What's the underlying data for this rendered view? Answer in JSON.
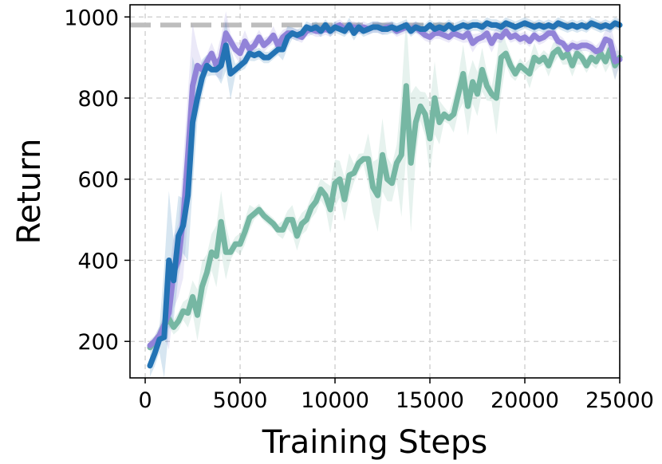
{
  "chart_data": {
    "type": "line",
    "title": "",
    "xlabel": "Training Steps",
    "ylabel": "Return",
    "xlim": [
      -800,
      25000
    ],
    "ylim": [
      110,
      1030
    ],
    "xticks": [
      0,
      5000,
      10000,
      15000,
      20000,
      25000
    ],
    "yticks": [
      200,
      400,
      600,
      800,
      1000
    ],
    "xtick_labels": [
      "0",
      "5000",
      "10000",
      "15000",
      "20000",
      "25000"
    ],
    "ytick_labels": [
      "200",
      "400",
      "600",
      "800",
      "1000"
    ],
    "grid": true,
    "legend": "none",
    "reference_line": {
      "y": 980,
      "color": "#bdbdbd",
      "style": "dashed"
    },
    "series": [
      {
        "color": "#76b7a3",
        "x": [
          250,
          500,
          750,
          1000,
          1250,
          1500,
          1750,
          2000,
          2250,
          2500,
          2750,
          3000,
          3250,
          3500,
          3750,
          4000,
          4250,
          4500,
          4750,
          5000,
          5250,
          5500,
          5750,
          6000,
          6250,
          6500,
          6750,
          7000,
          7250,
          7500,
          7750,
          8000,
          8250,
          8500,
          8750,
          9000,
          9250,
          9500,
          9750,
          10000,
          10250,
          10500,
          10750,
          11000,
          11250,
          11500,
          11750,
          12000,
          12250,
          12500,
          12750,
          13000,
          13250,
          13500,
          13750,
          14000,
          14250,
          14500,
          14750,
          15000,
          15250,
          15500,
          15750,
          16000,
          16250,
          16500,
          16750,
          17000,
          17250,
          17500,
          17750,
          18000,
          18250,
          18500,
          18750,
          19000,
          19250,
          19500,
          19750,
          20000,
          20250,
          20500,
          20750,
          21000,
          21250,
          21500,
          21750,
          22000,
          22250,
          22500,
          22750,
          23000,
          23250,
          23500,
          23750,
          24000,
          24250,
          24500,
          24750,
          25000
        ],
        "y": [
          185,
          200,
          215,
          240,
          255,
          235,
          250,
          275,
          270,
          310,
          265,
          335,
          370,
          420,
          410,
          495,
          420,
          420,
          440,
          440,
          470,
          505,
          515,
          525,
          510,
          500,
          490,
          475,
          475,
          500,
          500,
          460,
          490,
          500,
          530,
          545,
          575,
          560,
          525,
          590,
          600,
          550,
          610,
          615,
          640,
          650,
          650,
          580,
          560,
          660,
          600,
          590,
          640,
          660,
          830,
          640,
          740,
          780,
          760,
          700,
          800,
          740,
          760,
          750,
          760,
          810,
          860,
          780,
          840,
          810,
          870,
          830,
          810,
          800,
          900,
          910,
          880,
          860,
          880,
          870,
          860,
          900,
          890,
          900,
          880,
          910,
          920,
          900,
          910,
          880,
          910,
          900,
          880,
          900,
          890,
          910,
          890,
          920,
          880,
          900
        ]
      },
      {
        "color": "#9283d8",
        "x": [
          250,
          500,
          750,
          1000,
          1250,
          1500,
          1750,
          2000,
          2250,
          2500,
          2750,
          3000,
          3250,
          3500,
          3750,
          4000,
          4250,
          4500,
          4750,
          5000,
          5250,
          5500,
          5750,
          6000,
          6250,
          6500,
          6750,
          7000,
          7250,
          7500,
          7750,
          8000,
          8250,
          8500,
          8750,
          9000,
          9250,
          9500,
          9750,
          10000,
          10250,
          10500,
          10750,
          11000,
          11250,
          11500,
          11750,
          12000,
          12250,
          12500,
          12750,
          13000,
          13250,
          13500,
          13750,
          14000,
          14250,
          14500,
          14750,
          15000,
          15250,
          15500,
          15750,
          16000,
          16250,
          16500,
          16750,
          17000,
          17250,
          17500,
          17750,
          18000,
          18250,
          18500,
          18750,
          19000,
          19250,
          19500,
          19750,
          20000,
          20250,
          20500,
          20750,
          21000,
          21250,
          21500,
          21750,
          22000,
          22250,
          22500,
          22750,
          23000,
          23250,
          23500,
          23750,
          24000,
          24250,
          24500,
          24750,
          25000
        ],
        "y": [
          190,
          200,
          215,
          240,
          270,
          370,
          400,
          500,
          660,
          830,
          880,
          870,
          890,
          910,
          880,
          900,
          960,
          940,
          920,
          910,
          940,
          920,
          930,
          950,
          930,
          940,
          955,
          930,
          950,
          960,
          960,
          955,
          950,
          965,
          970,
          965,
          965,
          970,
          965,
          975,
          980,
          970,
          975,
          975,
          970,
          975,
          970,
          975,
          975,
          970,
          975,
          975,
          965,
          970,
          975,
          970,
          975,
          965,
          955,
          950,
          960,
          960,
          955,
          950,
          960,
          955,
          950,
          960,
          935,
          945,
          950,
          960,
          935,
          955,
          950,
          965,
          950,
          955,
          945,
          950,
          940,
          955,
          945,
          950,
          960,
          960,
          940,
          935,
          920,
          930,
          925,
          930,
          930,
          925,
          915,
          920,
          945,
          940,
          890,
          895
        ]
      },
      {
        "color": "#2373b4",
        "x": [
          250,
          500,
          750,
          1000,
          1250,
          1500,
          1750,
          2000,
          2250,
          2500,
          2750,
          3000,
          3250,
          3500,
          3750,
          4000,
          4250,
          4500,
          4750,
          5000,
          5250,
          5500,
          5750,
          6000,
          6250,
          6500,
          6750,
          7000,
          7250,
          7500,
          7750,
          8000,
          8250,
          8500,
          8750,
          9000,
          9250,
          9500,
          9750,
          10000,
          10250,
          10500,
          10750,
          11000,
          11250,
          11500,
          11750,
          12000,
          12250,
          12500,
          12750,
          13000,
          13250,
          13500,
          13750,
          14000,
          14250,
          14500,
          14750,
          15000,
          15250,
          15500,
          15750,
          16000,
          16250,
          16500,
          16750,
          17000,
          17250,
          17500,
          17750,
          18000,
          18250,
          18500,
          18750,
          19000,
          19250,
          19500,
          19750,
          20000,
          20250,
          20500,
          20750,
          21000,
          21250,
          21500,
          21750,
          22000,
          22250,
          22500,
          22750,
          23000,
          23250,
          23500,
          23750,
          24000,
          24250,
          24500,
          24750,
          25000
        ],
        "y": [
          140,
          170,
          205,
          210,
          400,
          350,
          460,
          485,
          560,
          740,
          800,
          850,
          880,
          870,
          870,
          880,
          930,
          860,
          870,
          880,
          890,
          910,
          905,
          910,
          900,
          900,
          910,
          920,
          920,
          950,
          960,
          955,
          960,
          975,
          970,
          975,
          965,
          980,
          965,
          975,
          970,
          965,
          980,
          960,
          975,
          965,
          970,
          975,
          975,
          970,
          970,
          975,
          970,
          975,
          980,
          965,
          975,
          970,
          970,
          980,
          970,
          975,
          970,
          980,
          970,
          975,
          980,
          975,
          980,
          980,
          975,
          985,
          980,
          980,
          975,
          985,
          980,
          975,
          980,
          985,
          980,
          975,
          980,
          975,
          980,
          975,
          985,
          980,
          975,
          980,
          975,
          980,
          975,
          985,
          980,
          975,
          980,
          975,
          985,
          980
        ]
      }
    ]
  }
}
